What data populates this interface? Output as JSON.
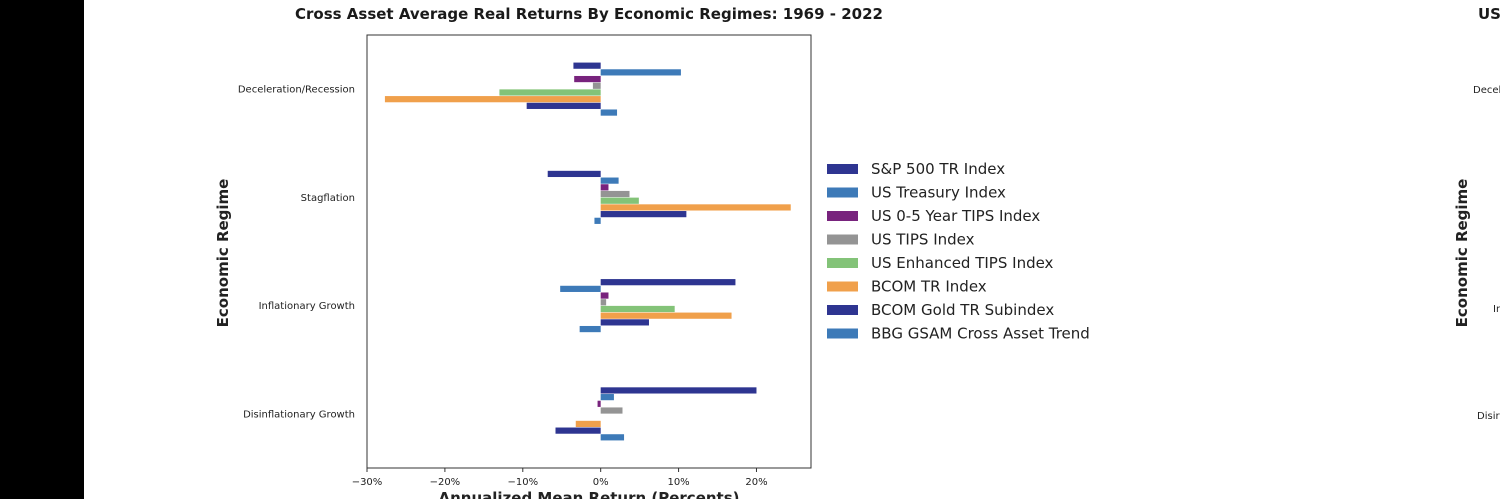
{
  "chart_data": {
    "type": "bar",
    "orientation": "horizontal",
    "title": "Cross Asset Average Real Returns By Economic Regimes: 1969 - 2022",
    "xlabel": "Annualized Mean Return (Percents)",
    "ylabel": "Economic Regime",
    "xlim": [
      -30,
      27
    ],
    "xticks": [
      -30,
      -20,
      -10,
      0,
      10,
      20
    ],
    "xtick_labels": [
      "−30%",
      "−20%",
      "−10%",
      "0%",
      "10%",
      "20%"
    ],
    "legend_position": "right",
    "categories": [
      "Deceleration/Recession",
      "Stagflation",
      "Inflationary Growth",
      "Disinflationary Growth"
    ],
    "series": [
      {
        "name": "S&P 500 TR Index",
        "color": "#2e3591",
        "values": [
          -3.5,
          -6.8,
          17.3,
          20.0
        ]
      },
      {
        "name": "US Treasury Index",
        "color": "#3d7ab8",
        "values": [
          10.3,
          2.3,
          -5.2,
          1.7
        ]
      },
      {
        "name": "US 0-5 Year TIPS Index",
        "color": "#78237d",
        "values": [
          -3.4,
          1.0,
          1.0,
          -0.4
        ]
      },
      {
        "name": "US TIPS Index",
        "color": "#949494",
        "values": [
          -1.0,
          3.7,
          0.7,
          2.8
        ]
      },
      {
        "name": "US Enhanced TIPS Index",
        "color": "#83c378",
        "values": [
          -13.0,
          4.9,
          9.5,
          0.0
        ]
      },
      {
        "name": "BCOM TR Index",
        "color": "#f0a04b",
        "values": [
          -27.7,
          24.4,
          16.8,
          -3.2
        ]
      },
      {
        "name": "BCOM Gold TR Subindex",
        "color": "#2e3591",
        "values": [
          -9.5,
          11.0,
          6.2,
          -5.8
        ]
      },
      {
        "name": "BBG GSAM Cross Asset Trend",
        "color": "#3d7ab8",
        "values": [
          2.1,
          -0.8,
          -2.7,
          3.0
        ]
      }
    ]
  },
  "side_panel": {
    "title_fragment": "US",
    "ylabel": "Economic Regime",
    "category_fragments": [
      "Decel",
      "In",
      "Disir"
    ]
  }
}
